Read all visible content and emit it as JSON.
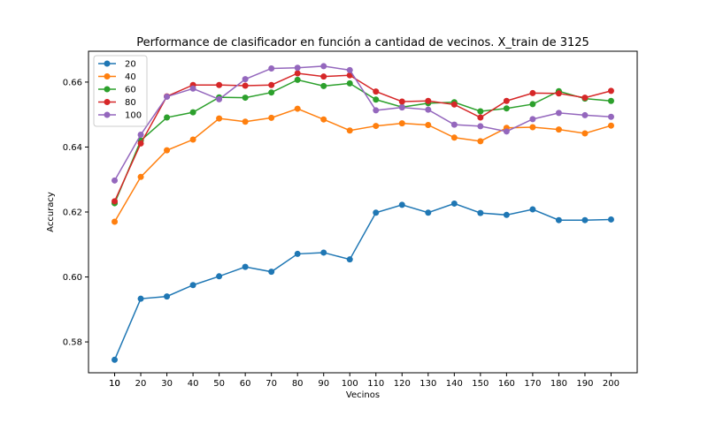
{
  "chart_data": {
    "type": "line",
    "title": "Performance de clasificador en función a cantidad de vecinos. X_train de 3125",
    "xlabel": "Vecinos",
    "ylabel": "Accuracy",
    "x": [
      10,
      20,
      30,
      40,
      50,
      60,
      70,
      80,
      90,
      100,
      110,
      120,
      130,
      140,
      150,
      160,
      170,
      180,
      190,
      200
    ],
    "x_ticks": [
      "10",
      "10",
      "20",
      "30",
      "40",
      "50",
      "60",
      "70",
      "80",
      "90",
      "100",
      "110",
      "120",
      "130",
      "140",
      "150",
      "160",
      "170",
      "180",
      "190",
      "200"
    ],
    "y_ticks": [
      "0.58",
      "0.60",
      "0.62",
      "0.64",
      "0.66"
    ],
    "y_tick_values": [
      0.58,
      0.6,
      0.62,
      0.64,
      0.66
    ],
    "xlim": [
      0,
      210
    ],
    "ylim": [
      0.5705,
      0.6695
    ],
    "legend_position": "top-left",
    "grid": false,
    "series": [
      {
        "name": "20",
        "color": "#1f77b4",
        "values": [
          0.5745,
          0.5933,
          0.594,
          0.5975,
          0.6002,
          0.6031,
          0.6016,
          0.6071,
          0.6075,
          0.6054,
          0.6198,
          0.6222,
          0.6198,
          0.6226,
          0.6197,
          0.6191,
          0.6208,
          0.6175,
          0.6175,
          0.6177
        ]
      },
      {
        "name": "40",
        "color": "#ff7f0e",
        "values": [
          0.617,
          0.6308,
          0.639,
          0.6423,
          0.6488,
          0.6478,
          0.649,
          0.6518,
          0.6485,
          0.6451,
          0.6465,
          0.6473,
          0.6468,
          0.6429,
          0.6418,
          0.6459,
          0.6461,
          0.6454,
          0.6442,
          0.6466
        ]
      },
      {
        "name": "60",
        "color": "#2ca02c",
        "values": [
          0.6227,
          0.642,
          0.6491,
          0.6507,
          0.6553,
          0.6552,
          0.6568,
          0.6607,
          0.6588,
          0.6596,
          0.6546,
          0.6523,
          0.6535,
          0.6538,
          0.651,
          0.6519,
          0.6532,
          0.6572,
          0.6549,
          0.6542
        ]
      },
      {
        "name": "80",
        "color": "#d62728",
        "values": [
          0.6233,
          0.6411,
          0.6556,
          0.6591,
          0.6591,
          0.6589,
          0.6591,
          0.6627,
          0.6617,
          0.6621,
          0.6571,
          0.654,
          0.6542,
          0.6531,
          0.6491,
          0.6542,
          0.6566,
          0.6565,
          0.6552,
          0.6573
        ]
      },
      {
        "name": "100",
        "color": "#9467bd",
        "values": [
          0.6297,
          0.6438,
          0.6555,
          0.658,
          0.6547,
          0.6609,
          0.6642,
          0.6644,
          0.6649,
          0.6637,
          0.6513,
          0.6522,
          0.6515,
          0.6469,
          0.6464,
          0.6448,
          0.6486,
          0.6505,
          0.6498,
          0.6493
        ]
      }
    ]
  }
}
